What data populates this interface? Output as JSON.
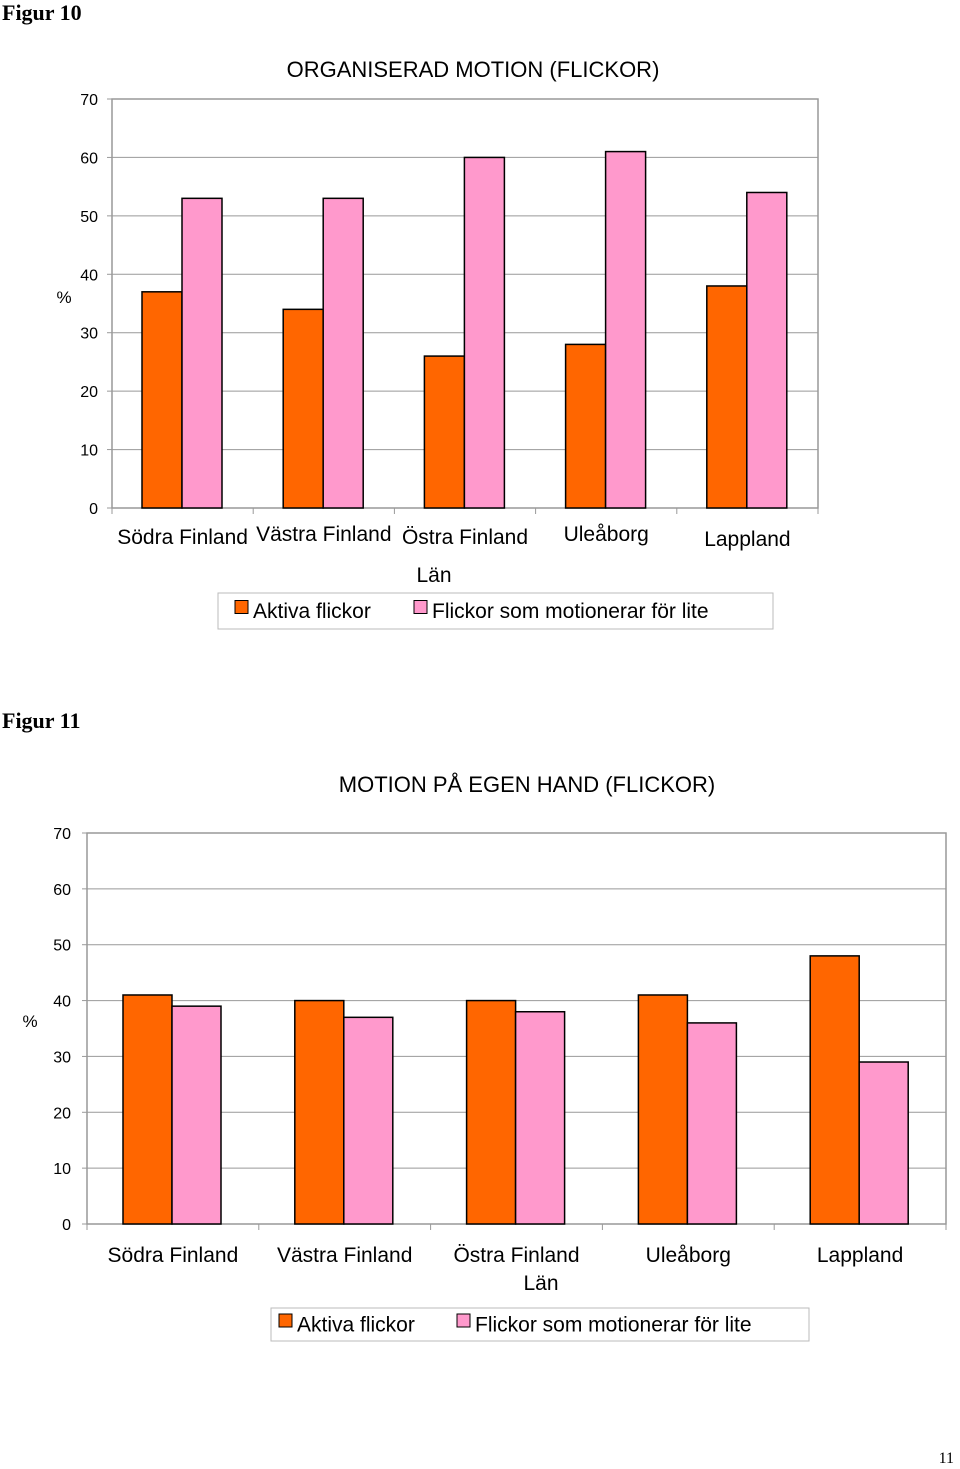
{
  "figures": [
    {
      "label": "Figur 10"
    },
    {
      "label": "Figur 11"
    }
  ],
  "page_number": "11",
  "chart_data": [
    {
      "type": "bar",
      "title": "ORGANISERAD MOTION (FLICKOR)",
      "xlabel": "Län",
      "ylabel": "%",
      "ylim": [
        0,
        70
      ],
      "yticks": [
        0,
        10,
        20,
        30,
        40,
        50,
        60,
        70
      ],
      "categories": [
        "Södra Finland",
        "Västra Finland",
        "Östra Finland",
        "Uleåborg",
        "Lappland"
      ],
      "series": [
        {
          "name": "Aktiva flickor",
          "color": "#FF6600",
          "values": [
            37,
            34,
            26,
            28,
            38
          ]
        },
        {
          "name": "Flickor som motionerar för lite",
          "color": "#FF99CC",
          "values": [
            53,
            53,
            60,
            61,
            54
          ]
        }
      ],
      "grid": true,
      "legend": "bottom"
    },
    {
      "type": "bar",
      "title": "MOTION PÅ EGEN HAND (FLICKOR)",
      "xlabel": "Län",
      "ylabel": "%",
      "ylim": [
        0,
        70
      ],
      "yticks": [
        0,
        10,
        20,
        30,
        40,
        50,
        60,
        70
      ],
      "categories": [
        "Södra Finland",
        "Västra Finland",
        "Östra Finland",
        "Uleåborg",
        "Lappland"
      ],
      "series": [
        {
          "name": "Aktiva flickor",
          "color": "#FF6600",
          "values": [
            41,
            40,
            40,
            41,
            48
          ]
        },
        {
          "name": "Flickor som motionerar för lite",
          "color": "#FF99CC",
          "values": [
            39,
            37,
            38,
            36,
            29
          ]
        }
      ],
      "grid": true,
      "legend": "bottom"
    }
  ]
}
